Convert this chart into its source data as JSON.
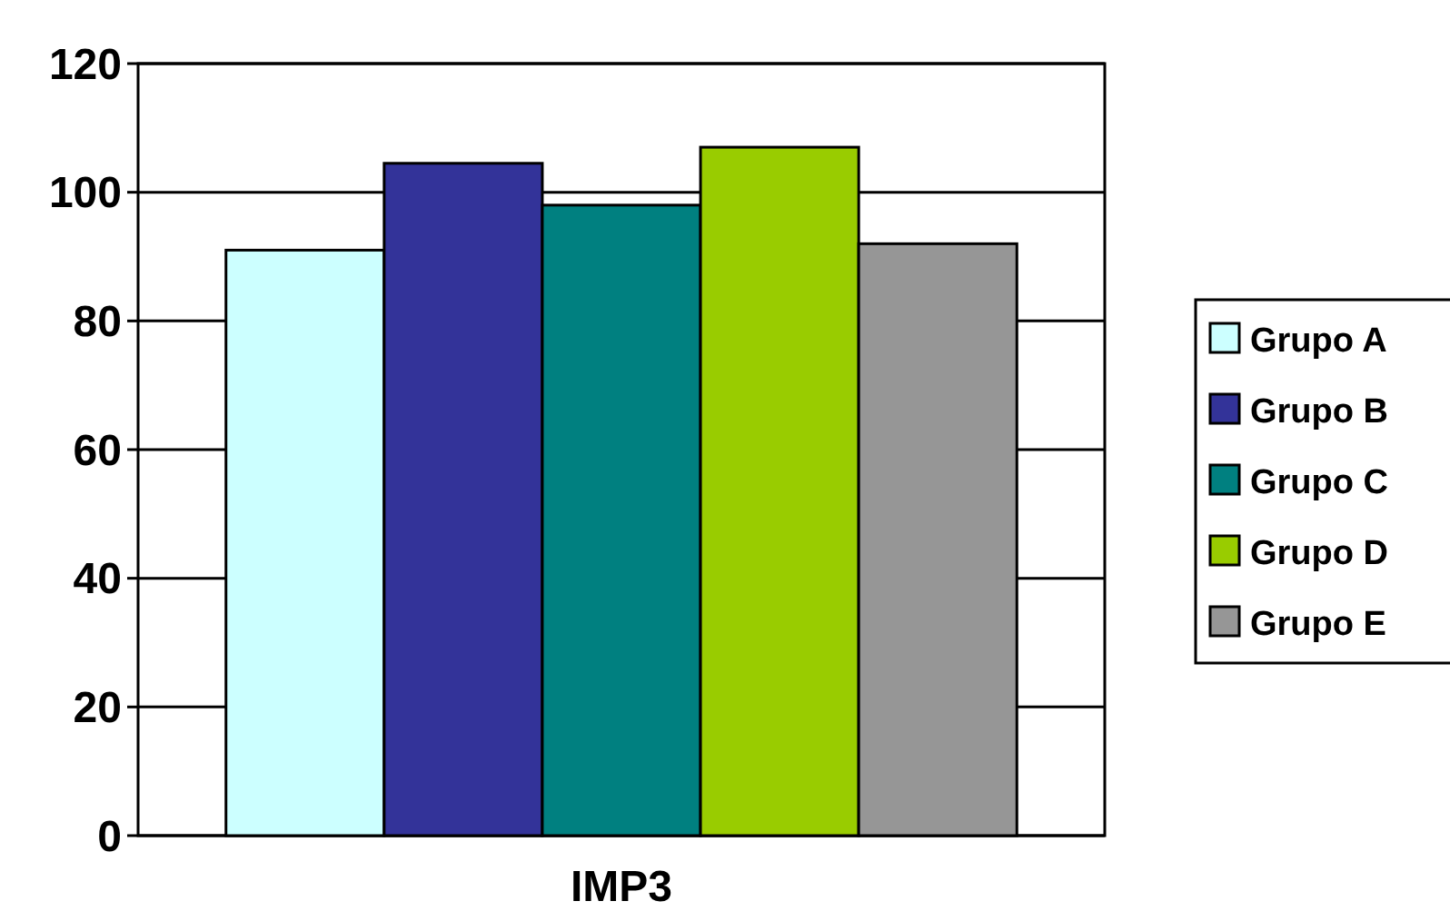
{
  "chart_data": {
    "type": "bar",
    "categories": [
      "IMP3"
    ],
    "series": [
      {
        "name": "Grupo A",
        "color": "#ccffff",
        "values": [
          91
        ]
      },
      {
        "name": "Grupo B",
        "color": "#333399",
        "values": [
          104.5
        ]
      },
      {
        "name": "Grupo C",
        "color": "#008080",
        "values": [
          98
        ]
      },
      {
        "name": "Grupo D",
        "color": "#99cc00",
        "values": [
          107
        ]
      },
      {
        "name": "Grupo E",
        "color": "#969696",
        "values": [
          92
        ]
      }
    ],
    "ylim": [
      0,
      120
    ],
    "yticks": [
      0,
      20,
      40,
      60,
      80,
      100,
      120
    ],
    "grid": "y",
    "legend": "right"
  }
}
